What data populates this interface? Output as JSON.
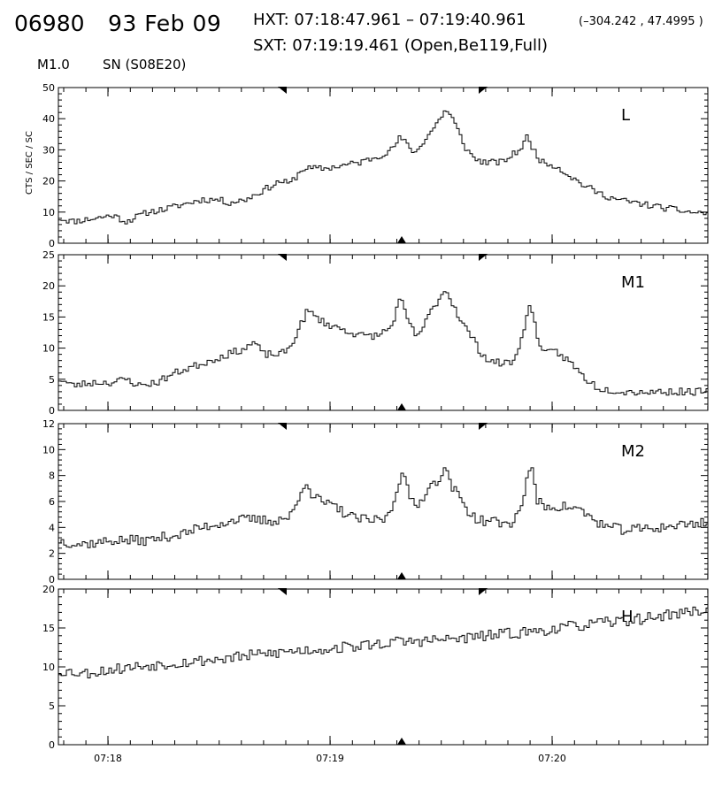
{
  "header": {
    "flare_id": "06980",
    "date": "93 Feb 09",
    "hxt_range": "HXT: 07:18:47.961 – 07:19:40.961",
    "hxt_coords": "(–304.242 , 47.4995 )",
    "sxt_info": "SXT: 07:19:19.461 (Open,Be119,Full)",
    "goes_class": "M1.0",
    "location": "SN (S08E20)"
  },
  "chart_data": [
    {
      "type": "line",
      "title": "L",
      "ylabel": "CTS / SEC / SC",
      "ylim": [
        0,
        50
      ],
      "yticks": [
        0,
        10,
        20,
        30,
        40,
        50
      ],
      "keypoints": [
        [
          0,
          8
        ],
        [
          15,
          7
        ],
        [
          40,
          8
        ],
        [
          60,
          9
        ],
        [
          75,
          7
        ],
        [
          100,
          10
        ],
        [
          120,
          11
        ],
        [
          140,
          12.5
        ],
        [
          160,
          14
        ],
        [
          180,
          14
        ],
        [
          190,
          13
        ],
        [
          210,
          14
        ],
        [
          230,
          17
        ],
        [
          250,
          20
        ],
        [
          260,
          19
        ],
        [
          275,
          24
        ],
        [
          300,
          24
        ],
        [
          320,
          25
        ],
        [
          340,
          26
        ],
        [
          360,
          28
        ],
        [
          375,
          30
        ],
        [
          385,
          34
        ],
        [
          395,
          31
        ],
        [
          402,
          29
        ],
        [
          412,
          33
        ],
        [
          420,
          36
        ],
        [
          430,
          40
        ],
        [
          436,
          43
        ],
        [
          444,
          40
        ],
        [
          452,
          35
        ],
        [
          460,
          30
        ],
        [
          470,
          27
        ],
        [
          480,
          26
        ],
        [
          500,
          26
        ],
        [
          510,
          28
        ],
        [
          520,
          30
        ],
        [
          528,
          34
        ],
        [
          536,
          30
        ],
        [
          545,
          26
        ],
        [
          560,
          25
        ],
        [
          575,
          22
        ],
        [
          590,
          19
        ],
        [
          610,
          16
        ],
        [
          630,
          14
        ],
        [
          650,
          13
        ],
        [
          670,
          12
        ],
        [
          690,
          11
        ],
        [
          712,
          10
        ],
        [
          733,
          9.5
        ]
      ],
      "noise": 0.8,
      "seed": 11
    },
    {
      "type": "line",
      "title": "M1",
      "ylim": [
        0,
        25
      ],
      "yticks": [
        0,
        5,
        10,
        15,
        20,
        25
      ],
      "keypoints": [
        [
          0,
          5
        ],
        [
          15,
          4
        ],
        [
          40,
          4.5
        ],
        [
          60,
          4.5
        ],
        [
          75,
          5
        ],
        [
          90,
          4
        ],
        [
          110,
          4.5
        ],
        [
          130,
          6
        ],
        [
          150,
          7
        ],
        [
          170,
          8
        ],
        [
          190,
          9
        ],
        [
          210,
          10
        ],
        [
          220,
          11
        ],
        [
          230,
          9
        ],
        [
          240,
          9
        ],
        [
          250,
          9
        ],
        [
          260,
          10
        ],
        [
          270,
          13
        ],
        [
          280,
          16
        ],
        [
          290,
          15
        ],
        [
          300,
          14
        ],
        [
          320,
          13
        ],
        [
          340,
          12
        ],
        [
          360,
          12
        ],
        [
          375,
          13.5
        ],
        [
          385,
          18
        ],
        [
          392,
          15
        ],
        [
          402,
          12
        ],
        [
          410,
          13
        ],
        [
          420,
          16
        ],
        [
          436,
          19.5
        ],
        [
          445,
          17
        ],
        [
          455,
          14
        ],
        [
          465,
          12
        ],
        [
          475,
          9.5
        ],
        [
          485,
          8
        ],
        [
          500,
          7.5
        ],
        [
          515,
          8
        ],
        [
          524,
          13
        ],
        [
          532,
          17
        ],
        [
          540,
          12
        ],
        [
          548,
          9
        ],
        [
          560,
          9.5
        ],
        [
          575,
          8
        ],
        [
          595,
          5
        ],
        [
          610,
          3.5
        ],
        [
          640,
          3
        ],
        [
          680,
          3
        ],
        [
          712,
          3
        ],
        [
          733,
          3
        ]
      ],
      "noise": 0.45,
      "seed": 23
    },
    {
      "type": "line",
      "title": "M2",
      "ylim": [
        0,
        12
      ],
      "yticks": [
        0,
        2,
        4,
        6,
        8,
        10,
        12
      ],
      "keypoints": [
        [
          0,
          3
        ],
        [
          20,
          2.7
        ],
        [
          40,
          2.8
        ],
        [
          60,
          3
        ],
        [
          80,
          3
        ],
        [
          100,
          3
        ],
        [
          120,
          3.3
        ],
        [
          140,
          3.5
        ],
        [
          160,
          4
        ],
        [
          180,
          4.3
        ],
        [
          200,
          4.6
        ],
        [
          220,
          4.6
        ],
        [
          240,
          4.5
        ],
        [
          260,
          4.8
        ],
        [
          270,
          6
        ],
        [
          278,
          7.8
        ],
        [
          285,
          6.6
        ],
        [
          295,
          6
        ],
        [
          310,
          5.6
        ],
        [
          330,
          4.8
        ],
        [
          350,
          4.5
        ],
        [
          370,
          4.7
        ],
        [
          378,
          6
        ],
        [
          388,
          8.8
        ],
        [
          396,
          6
        ],
        [
          405,
          5.6
        ],
        [
          415,
          7
        ],
        [
          425,
          7.5
        ],
        [
          435,
          8.5
        ],
        [
          445,
          7
        ],
        [
          455,
          6
        ],
        [
          465,
          5
        ],
        [
          475,
          4.5
        ],
        [
          490,
          4.5
        ],
        [
          505,
          4.2
        ],
        [
          515,
          4.6
        ],
        [
          525,
          6.5
        ],
        [
          532,
          9
        ],
        [
          540,
          6
        ],
        [
          550,
          5.6
        ],
        [
          560,
          5.6
        ],
        [
          575,
          5.6
        ],
        [
          590,
          5.3
        ],
        [
          605,
          4.5
        ],
        [
          620,
          4
        ],
        [
          640,
          3.8
        ],
        [
          660,
          3.9
        ],
        [
          680,
          4
        ],
        [
          700,
          4.2
        ],
        [
          720,
          4.3
        ],
        [
          733,
          4.5
        ]
      ],
      "noise": 0.3,
      "seed": 37
    },
    {
      "type": "line",
      "title": "H",
      "ylim": [
        0,
        20
      ],
      "yticks": [
        0,
        5,
        10,
        15,
        20
      ],
      "keypoints": [
        [
          0,
          9.5
        ],
        [
          30,
          9.2
        ],
        [
          60,
          9.7
        ],
        [
          100,
          10.2
        ],
        [
          140,
          10.6
        ],
        [
          180,
          11
        ],
        [
          220,
          11.5
        ],
        [
          260,
          12
        ],
        [
          300,
          12.3
        ],
        [
          340,
          12.7
        ],
        [
          380,
          13.2
        ],
        [
          420,
          13.4
        ],
        [
          460,
          13.7
        ],
        [
          500,
          14.2
        ],
        [
          540,
          14.6
        ],
        [
          580,
          15.2
        ],
        [
          620,
          15.7
        ],
        [
          660,
          16.2
        ],
        [
          700,
          16.9
        ],
        [
          733,
          17.4
        ]
      ],
      "noise": 0.55,
      "seed": 53
    }
  ],
  "time_axis": {
    "ticks": [
      "07:18",
      "07:19",
      "07:20"
    ]
  }
}
